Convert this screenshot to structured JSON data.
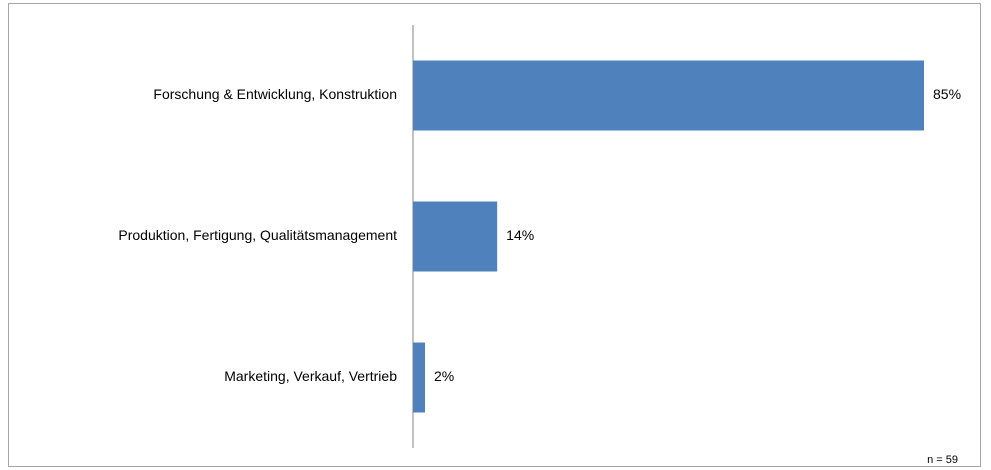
{
  "chart_data": {
    "type": "barh",
    "categories": [
      "Forschung & Entwicklung, Konstruktion",
      "Produktion, Fertigung, Qualitätsmanagement",
      "Marketing, Verkauf, Vertrieb"
    ],
    "values": [
      85,
      14,
      2
    ],
    "value_labels": [
      "85%",
      "14%",
      "2%"
    ],
    "color": "#4f81bd",
    "annotation": "n = 59"
  }
}
